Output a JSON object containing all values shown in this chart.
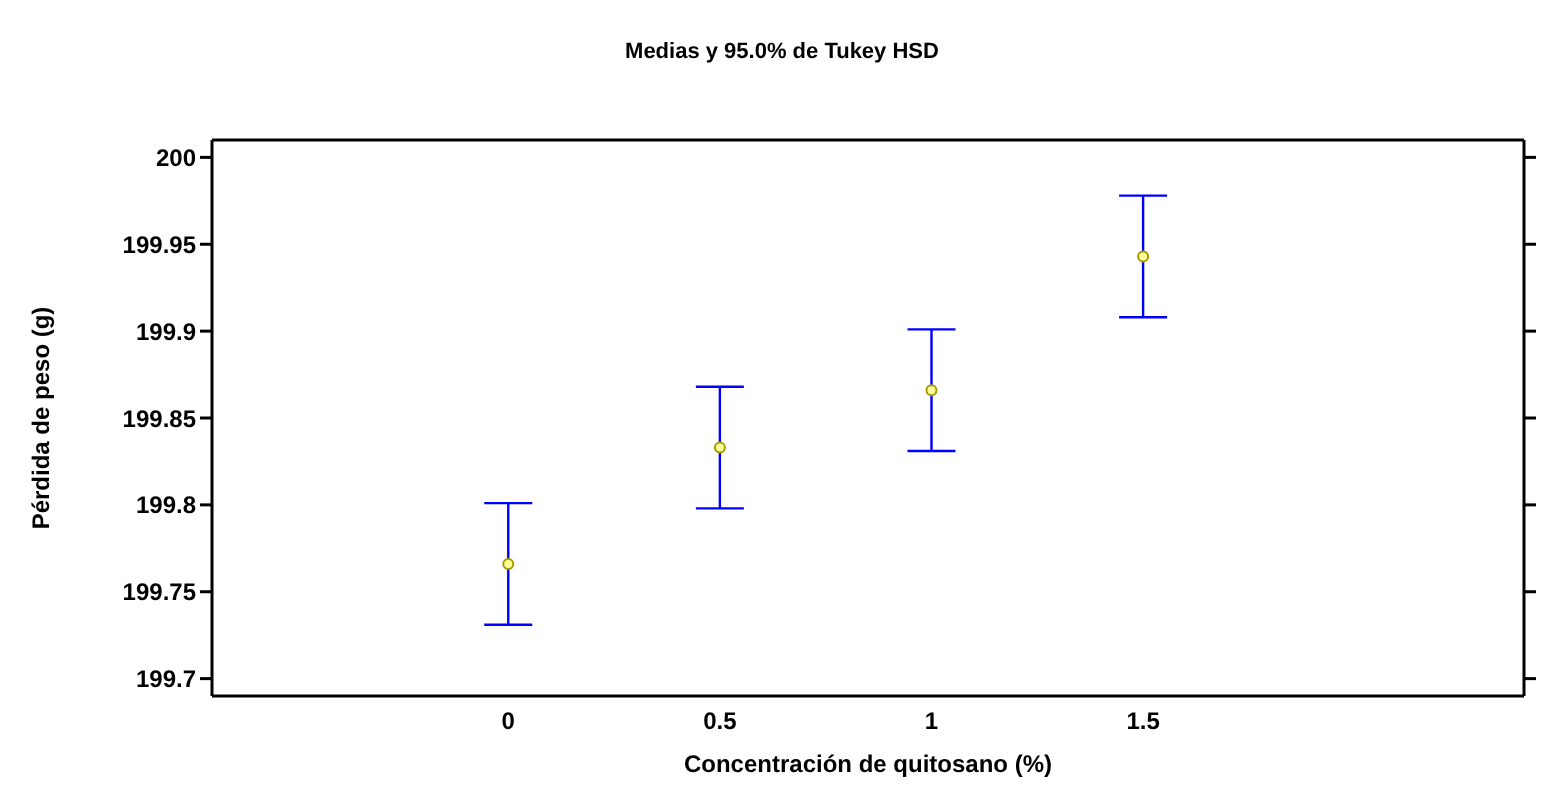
{
  "chart_data": {
    "type": "scatter",
    "title": "Medias y 95.0% de Tukey HSD",
    "xlabel": "Concentración de quitosano (%)",
    "ylabel": "Pérdida de peso (g)",
    "x": [
      0,
      0.5,
      1,
      1.5
    ],
    "series": [
      {
        "color": "#a89a00",
        "values": [
          199.766,
          199.833,
          199.866,
          199.943
        ],
        "errors": [
          0.035,
          0.035,
          0.035,
          0.035
        ]
      }
    ],
    "xlim": [
      -0.7,
      2.4
    ],
    "xticks": [
      0,
      0.5,
      1,
      1.5
    ],
    "ylim": [
      199.69,
      200.01
    ],
    "yticks": [
      199.7,
      199.75,
      199.8,
      199.85,
      199.9,
      199.95,
      200
    ],
    "marker": "circle"
  }
}
